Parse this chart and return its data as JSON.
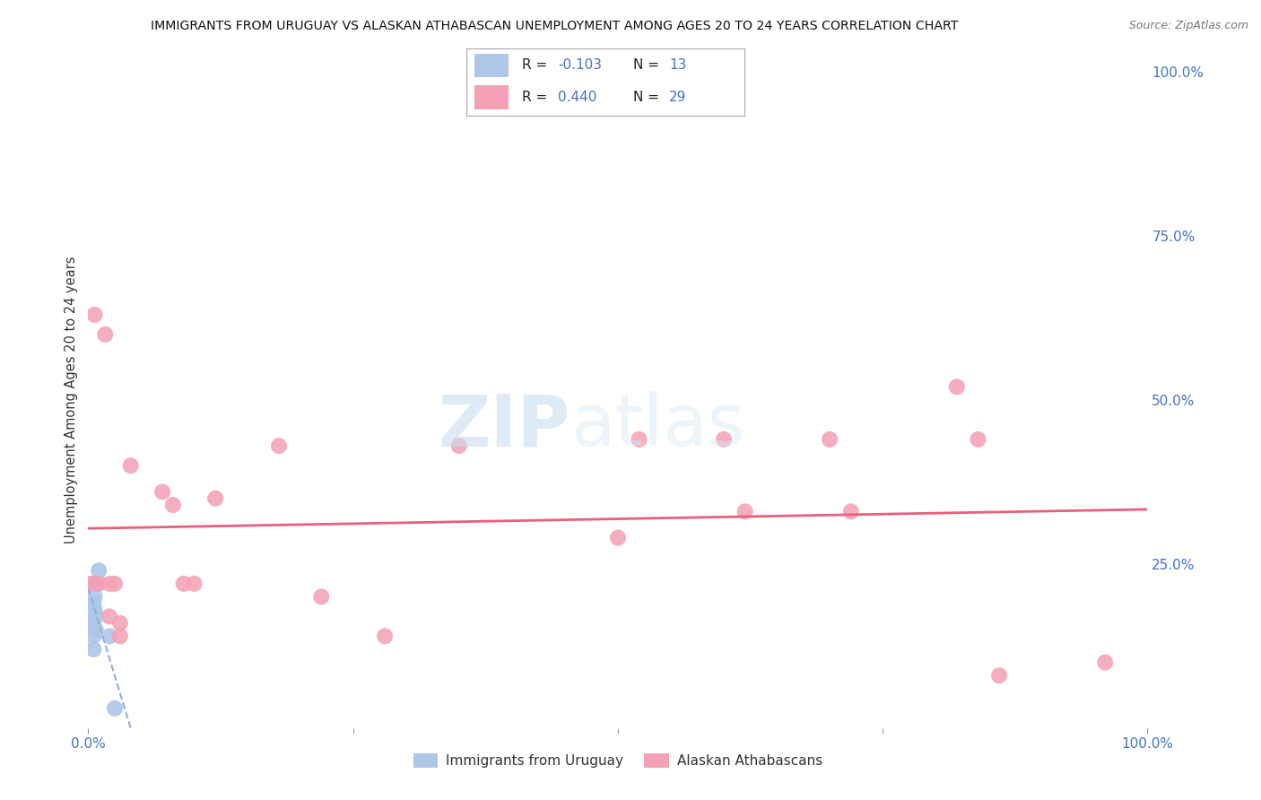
{
  "title": "IMMIGRANTS FROM URUGUAY VS ALASKAN ATHABASCAN UNEMPLOYMENT AMONG AGES 20 TO 24 YEARS CORRELATION CHART",
  "source": "Source: ZipAtlas.com",
  "ylabel": "Unemployment Among Ages 20 to 24 years",
  "xlim": [
    0.0,
    1.0
  ],
  "ylim": [
    0.0,
    1.0
  ],
  "xticklabels": [
    "0.0%",
    "",
    "",
    "",
    "100.0%"
  ],
  "xtick_positions": [
    0.0,
    0.25,
    0.5,
    0.75,
    1.0
  ],
  "ytick_right_labels": [
    "100.0%",
    "75.0%",
    "50.0%",
    "25.0%",
    ""
  ],
  "ytick_right_values": [
    1.0,
    0.75,
    0.5,
    0.25,
    0.0
  ],
  "legend_label1": "Immigrants from Uruguay",
  "legend_label2": "Alaskan Athabascans",
  "r1": "-0.103",
  "n1": "13",
  "r2": "0.440",
  "n2": "29",
  "color1": "#aec6e8",
  "color2": "#f4a0b5",
  "line1_color": "#8ab4d8",
  "line2_color": "#e8607a",
  "background_color": "#ffffff",
  "uruguay_x": [
    0.004,
    0.005,
    0.005,
    0.005,
    0.005,
    0.006,
    0.006,
    0.007,
    0.007,
    0.008,
    0.01,
    0.02,
    0.025
  ],
  "uruguay_y": [
    0.22,
    0.19,
    0.16,
    0.14,
    0.12,
    0.2,
    0.18,
    0.17,
    0.15,
    0.22,
    0.24,
    0.14,
    0.03
  ],
  "athabascan_x": [
    0.003,
    0.006,
    0.01,
    0.016,
    0.02,
    0.025,
    0.03,
    0.04,
    0.12,
    0.18,
    0.22,
    0.28,
    0.35,
    0.5,
    0.52,
    0.6,
    0.62,
    0.7,
    0.72,
    0.82,
    0.84,
    0.86,
    0.96,
    0.02,
    0.03,
    0.07,
    0.08,
    0.09,
    0.1
  ],
  "athabascan_y": [
    0.22,
    0.63,
    0.22,
    0.6,
    0.22,
    0.22,
    0.14,
    0.4,
    0.35,
    0.43,
    0.2,
    0.14,
    0.43,
    0.29,
    0.44,
    0.44,
    0.33,
    0.44,
    0.33,
    0.52,
    0.44,
    0.08,
    0.1,
    0.17,
    0.16,
    0.36,
    0.34,
    0.22,
    0.22
  ],
  "marker_size": 170
}
